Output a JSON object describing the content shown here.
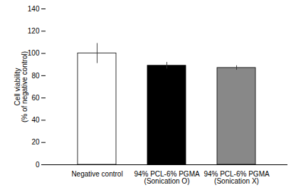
{
  "chart_data": {
    "type": "bar",
    "categories": [
      "Negative control",
      "94% PCL-6% PGMA\n(Sonication O)",
      "94% PCL-6% PGMA\n(Sonication X)"
    ],
    "values": [
      100,
      89,
      87
    ],
    "errors": [
      9,
      3,
      2
    ],
    "colors": [
      "#ffffff",
      "#000000",
      "#888888"
    ],
    "ylabel": "Cell viability\n(% of negative control)",
    "ylim": [
      0,
      140
    ],
    "yticks": [
      0,
      20,
      40,
      60,
      80,
      100,
      120,
      140
    ]
  }
}
